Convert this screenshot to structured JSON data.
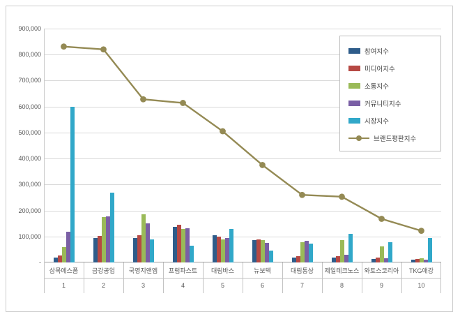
{
  "chart_data": {
    "type": "bar",
    "subtype": "grouped-bars-with-line-overlay",
    "title": "",
    "categories": [
      "삼목에스폼",
      "금강공업",
      "국영지앤엠",
      "프럼파스트",
      "대림바스",
      "뉴보텍",
      "대림통상",
      "제일테크노스",
      "와토스코리아",
      "TKG애강"
    ],
    "category_numbers": [
      "1",
      "2",
      "3",
      "4",
      "5",
      "6",
      "7",
      "8",
      "9",
      "10"
    ],
    "series": [
      {
        "name": "참여지수",
        "type": "bar",
        "color": "#2E5C8A",
        "values": [
          18000,
          93000,
          93000,
          138000,
          105000,
          85000,
          20000,
          18000,
          13000,
          10000
        ]
      },
      {
        "name": "미디어지수",
        "type": "bar",
        "color": "#B64843",
        "values": [
          28000,
          103000,
          104000,
          145000,
          100000,
          90000,
          25000,
          25000,
          18000,
          13000
        ]
      },
      {
        "name": "소통지수",
        "type": "bar",
        "color": "#9ABA58",
        "values": [
          58000,
          175000,
          185000,
          128000,
          88000,
          85000,
          78000,
          85000,
          63000,
          15000
        ]
      },
      {
        "name": "커뮤니티지수",
        "type": "bar",
        "color": "#7A5FA5",
        "values": [
          118000,
          178000,
          150000,
          133000,
          93000,
          75000,
          83000,
          30000,
          15000,
          10000
        ]
      },
      {
        "name": "시장지수",
        "type": "bar",
        "color": "#31A8C9",
        "values": [
          600000,
          268000,
          90000,
          65000,
          128000,
          45000,
          73000,
          110000,
          78000,
          95000
        ]
      },
      {
        "name": "브랜드평판지수",
        "type": "line",
        "color": "#948A54",
        "values": [
          831000,
          820000,
          628000,
          614000,
          505000,
          375000,
          260000,
          253000,
          168000,
          122000
        ]
      }
    ],
    "ylim": [
      0,
      900000
    ],
    "ytick_step": 100000,
    "ytick_labels": [
      "-",
      "100,000",
      "200,000",
      "300,000",
      "400,000",
      "500,000",
      "600,000",
      "700,000",
      "800,000",
      "900,000"
    ],
    "grid": true,
    "legend_position": "top-right"
  }
}
